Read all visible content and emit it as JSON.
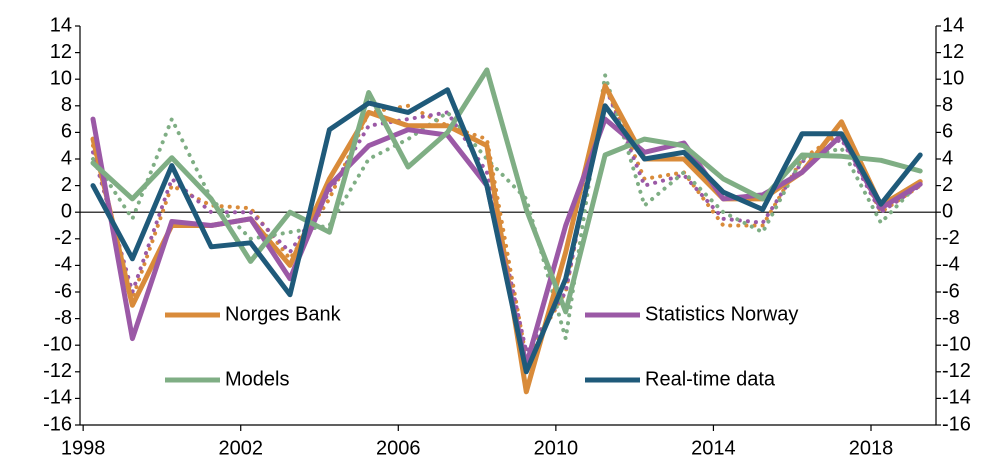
{
  "chart_data": {
    "type": "line",
    "x": [
      1998.25,
      1999.25,
      2000.25,
      2001.25,
      2002.25,
      2003.25,
      2004.25,
      2005.25,
      2006.25,
      2007.25,
      2008.25,
      2009.25,
      2010.25,
      2011.25,
      2012.25,
      2013.25,
      2014.25,
      2015.25,
      2016.25,
      2017.25,
      2018.25,
      2019.25
    ],
    "series": [
      {
        "name": "Norges Bank",
        "color": "#d98b3a",
        "style": "solid",
        "values": [
          5.5,
          -7,
          -1,
          -1,
          -0.5,
          -4,
          2.5,
          7.5,
          6.5,
          6.5,
          5,
          -13.5,
          -3,
          9.5,
          4,
          4,
          1,
          1,
          3,
          6.8,
          0.5,
          2.3
        ]
      },
      {
        "name": "Statistics Norway",
        "color": "#9b59a6",
        "style": "solid",
        "values": [
          7,
          -9.5,
          -0.7,
          -1,
          -0.5,
          -5,
          2,
          5,
          6.2,
          5.8,
          2,
          -11.5,
          -1,
          7,
          4.5,
          5.2,
          1,
          1.3,
          3,
          5.8,
          0.3,
          2.1
        ]
      },
      {
        "name": "Models",
        "color": "#7fae84",
        "style": "solid",
        "values": [
          3.7,
          1,
          4.1,
          1,
          -3.7,
          0,
          -1.5,
          9,
          3.4,
          6,
          10.7,
          0.2,
          -7.5,
          4.3,
          5.5,
          5,
          2.5,
          1,
          4.3,
          4.2,
          3.9,
          3.1
        ]
      },
      {
        "name": "Real-time data",
        "color": "#1f5a7a",
        "style": "solid",
        "values": [
          2,
          -3.5,
          3.5,
          -2.6,
          -2.3,
          -6.2,
          6.2,
          8.2,
          7.5,
          9.2,
          2,
          -12,
          -5,
          8,
          4,
          4.5,
          1.5,
          0.2,
          5.9,
          5.9,
          0.6,
          4.3
        ]
      },
      {
        "color": "#d98b3a",
        "style": "dotted",
        "values": [
          5,
          -6.5,
          2,
          0.5,
          0.3,
          -3.5,
          1,
          7.5,
          8,
          6.5,
          5.5,
          -11,
          -6,
          9.5,
          2.5,
          3,
          -1,
          -1,
          4,
          6,
          0,
          2
        ]
      },
      {
        "color": "#9b59a6",
        "style": "dotted",
        "values": [
          4.5,
          -6,
          2.5,
          0,
          0,
          -3,
          1.5,
          6.5,
          7,
          7.5,
          3,
          -10.5,
          -6,
          9.5,
          2,
          2.8,
          -0.5,
          -0.8,
          3.8,
          5.5,
          0,
          2
        ]
      },
      {
        "color": "#7fae84",
        "style": "dotted",
        "values": [
          4,
          -0.5,
          7,
          1,
          -2,
          -1.5,
          -1,
          4,
          5.5,
          7.5,
          4,
          1,
          -9.5,
          10.3,
          0.5,
          3,
          0,
          -1.5,
          4,
          4.8,
          -0.8,
          2.3
        ]
      }
    ],
    "xlim": [
      1997.92,
      2019.65
    ],
    "xticks": [
      1998,
      2002,
      2006,
      2010,
      2014,
      2018
    ],
    "ylim": [
      -16,
      14
    ],
    "yticks": [
      -16,
      -14,
      -12,
      -10,
      -8,
      -6,
      -4,
      -2,
      0,
      2,
      4,
      6,
      8,
      10,
      12,
      14
    ],
    "y2lim": [
      -16,
      14
    ],
    "y2ticks": [
      -16,
      -14,
      -12,
      -10,
      -8,
      -6,
      -4,
      -2,
      0,
      2,
      4,
      6,
      8,
      10,
      12,
      14
    ],
    "legend": "inside"
  }
}
